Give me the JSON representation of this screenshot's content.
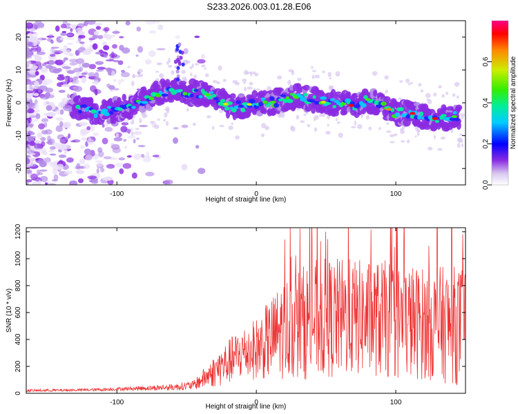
{
  "title": "S233.2026.003.01.28.E06",
  "chart_data": [
    {
      "type": "heatmap",
      "xlabel": "Height of straight line (km)",
      "ylabel": "Frequency (Hz)",
      "xlim": [
        -165,
        150
      ],
      "ylim": [
        -25,
        25
      ],
      "xticks": [
        -100,
        0,
        100
      ],
      "yticks": [
        -20,
        -10,
        0,
        10,
        20
      ],
      "colorbar": {
        "label": "Normalized spectral amplitude",
        "range": [
          0,
          0.8
        ],
        "ticks": [
          "0.0",
          "0.2",
          "0.4",
          "0.6"
        ]
      },
      "ridge": {
        "x": [
          -130,
          -115,
          -100,
          -90,
          -80,
          -70,
          -60,
          -50,
          -40,
          -30,
          -20,
          -10,
          0,
          10,
          20,
          30,
          40,
          50,
          60,
          70,
          80,
          90,
          100,
          110,
          120,
          130,
          145
        ],
        "frequency": [
          -1,
          -3,
          -2,
          -1,
          1,
          3,
          4,
          3,
          3,
          2,
          -1,
          -1,
          0,
          0,
          1,
          2,
          1,
          0,
          0,
          -1,
          1,
          -1,
          -3,
          -3,
          -4,
          -5,
          -4
        ]
      }
    },
    {
      "type": "line",
      "xlabel": "Height of straight line (km)",
      "ylabel": "SNR (10 * v/v)",
      "xlim": [
        -165,
        150
      ],
      "ylim": [
        0,
        1230
      ],
      "xticks": [
        -100,
        0,
        100
      ],
      "yticks": [
        0,
        200,
        400,
        600,
        800,
        1000,
        1200
      ],
      "color": "#ee3333",
      "envelope": {
        "x": [
          -165,
          -120,
          -90,
          -60,
          -45,
          -35,
          -25,
          -10,
          0,
          10,
          20,
          40,
          60,
          80,
          100,
          120,
          150
        ],
        "mean": [
          20,
          25,
          35,
          45,
          60,
          130,
          200,
          300,
          330,
          400,
          480,
          550,
          560,
          560,
          540,
          520,
          500
        ],
        "amplitude": [
          10,
          10,
          15,
          25,
          35,
          90,
          150,
          200,
          230,
          300,
          380,
          450,
          450,
          430,
          450,
          420,
          450
        ]
      }
    }
  ]
}
